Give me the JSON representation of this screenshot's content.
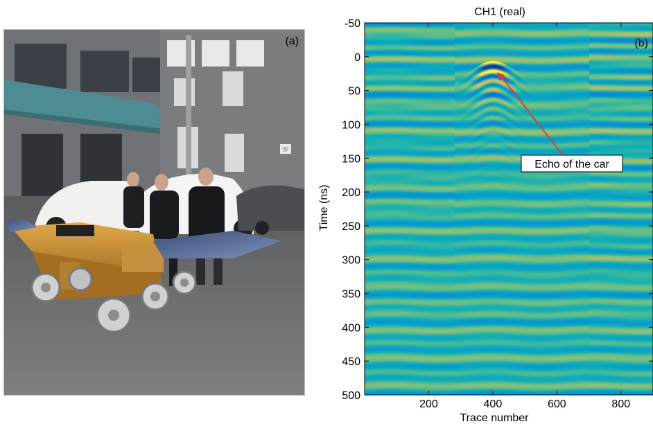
{
  "panel_a": {
    "label": "(a)",
    "building_sign": "7F"
  },
  "panel_b": {
    "label": "(b)"
  },
  "chart_data": {
    "type": "heatmap",
    "title": "CH1 (real)",
    "xlabel": "Trace number",
    "ylabel": "Time (ns)",
    "xlim": [
      0,
      900
    ],
    "ylim": [
      -50,
      500
    ],
    "y_inverted": true,
    "xticks": [
      200,
      400,
      600,
      800
    ],
    "yticks": [
      -50,
      0,
      50,
      100,
      150,
      200,
      250,
      300,
      350,
      400,
      450,
      500
    ],
    "colormap": "parula",
    "annotation": {
      "text": "Echo of the car",
      "arrow_target": {
        "trace": 400,
        "time_ns": 20
      }
    },
    "hyperbola": {
      "apex_trace": 400,
      "apex_time_ns": 20
    }
  },
  "colors": {
    "background": "#2aa7a0",
    "arrow": "#e03a3a"
  }
}
